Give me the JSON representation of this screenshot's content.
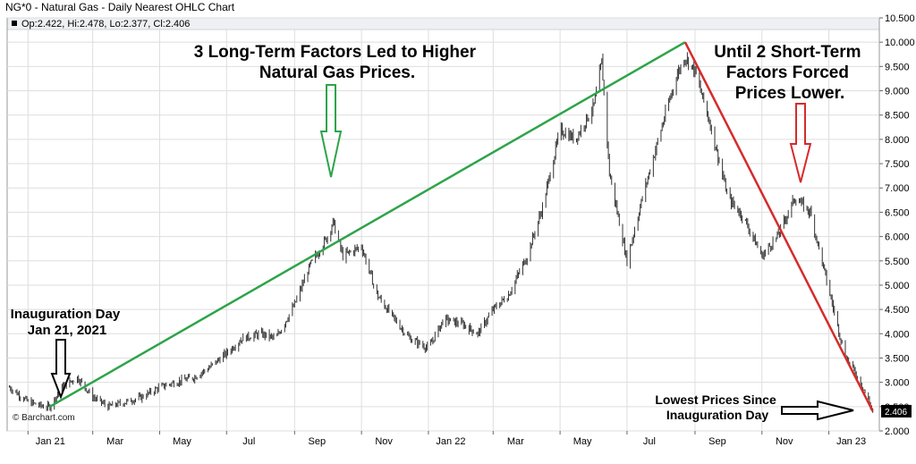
{
  "chart_data": {
    "type": "line",
    "title": "NG*0 - Natural Gas - Daily Nearest OHLC Chart",
    "ohlc_readout": "Op:2.422, Hi:2.478, Lo:2.377, Cl:2.406",
    "credit": "© Barchart.com",
    "last_price_label": "2.406",
    "ylim": [
      2.0,
      10.5
    ],
    "yticks": [
      "2.000",
      "2.500",
      "3.000",
      "3.500",
      "4.000",
      "4.500",
      "5.000",
      "5.500",
      "6.000",
      "6.500",
      "7.000",
      "7.500",
      "8.000",
      "8.500",
      "9.000",
      "9.500",
      "10.000",
      "10.500"
    ],
    "xticks": [
      "Jan 21",
      "Mar",
      "May",
      "Jul",
      "Sep",
      "Nov",
      "Jan 22",
      "Mar",
      "May",
      "Jul",
      "Sep",
      "Nov",
      "Jan 23"
    ],
    "grid": true,
    "series": [
      {
        "x": [
          "2020-12-15",
          "2021-01-01",
          "2021-01-15",
          "2021-01-21",
          "2021-02-01",
          "2021-02-15",
          "2021-03-01",
          "2021-03-15",
          "2021-04-01",
          "2021-04-15",
          "2021-05-01",
          "2021-05-15",
          "2021-06-01",
          "2021-06-15",
          "2021-07-01",
          "2021-07-15",
          "2021-08-01",
          "2021-08-15",
          "2021-09-01",
          "2021-09-15",
          "2021-10-01",
          "2021-10-06",
          "2021-10-15",
          "2021-11-01",
          "2021-11-15",
          "2021-12-01",
          "2021-12-15",
          "2022-01-01",
          "2022-01-15",
          "2022-02-01",
          "2022-02-15",
          "2022-03-01",
          "2022-03-15",
          "2022-04-01",
          "2022-04-15",
          "2022-05-01",
          "2022-05-15",
          "2022-06-01",
          "2022-06-08",
          "2022-06-15",
          "2022-07-01",
          "2022-07-15",
          "2022-08-01",
          "2022-08-15",
          "2022-08-23",
          "2022-09-01",
          "2022-09-15",
          "2022-10-01",
          "2022-10-15",
          "2022-11-01",
          "2022-11-15",
          "2022-12-01",
          "2022-12-15",
          "2023-01-01",
          "2023-01-15",
          "2023-02-01",
          "2023-02-10"
        ],
        "values": [
          2.9,
          2.6,
          2.5,
          2.5,
          2.9,
          3.1,
          2.7,
          2.5,
          2.6,
          2.7,
          2.9,
          3.0,
          3.1,
          3.3,
          3.6,
          3.9,
          4.0,
          3.9,
          4.6,
          5.4,
          6.0,
          6.3,
          5.6,
          5.8,
          4.8,
          4.3,
          3.9,
          3.7,
          4.3,
          4.2,
          4.0,
          4.5,
          4.8,
          5.6,
          6.6,
          8.2,
          8.0,
          8.7,
          9.6,
          7.3,
          5.5,
          6.8,
          8.2,
          9.3,
          9.7,
          9.4,
          8.3,
          6.8,
          6.4,
          5.6,
          6.0,
          6.8,
          6.5,
          4.9,
          3.6,
          2.9,
          2.406
        ]
      }
    ],
    "annotations": [
      {
        "lines": [
          "3 Long-Term Factors Led to Higher",
          "Natural Gas Prices."
        ]
      },
      {
        "lines": [
          "Until 2 Short-Term",
          "Factors Forced",
          "Prices Lower."
        ]
      },
      {
        "lines": [
          "Inauguration Day",
          "Jan 21, 2021"
        ]
      },
      {
        "lines": [
          "Lowest Prices Since",
          "Inauguration Day"
        ]
      }
    ],
    "trendlines": [
      {
        "from": {
          "x": "2021-01-21",
          "y": 2.5
        },
        "to": {
          "x": "2022-08-23",
          "y": 10.0
        }
      },
      {
        "from": {
          "x": "2022-08-23",
          "y": 10.0
        },
        "to": {
          "x": "2023-02-10",
          "y": 2.406
        }
      }
    ],
    "colors": {
      "bars": "#333333",
      "rise_line": "#2ea44a",
      "fall_line": "#d52b2b",
      "green_arrow": "#2ea44a",
      "red_arrow": "#d52b2b",
      "grid": "#dedede",
      "last_label_bg": "#000000"
    }
  }
}
